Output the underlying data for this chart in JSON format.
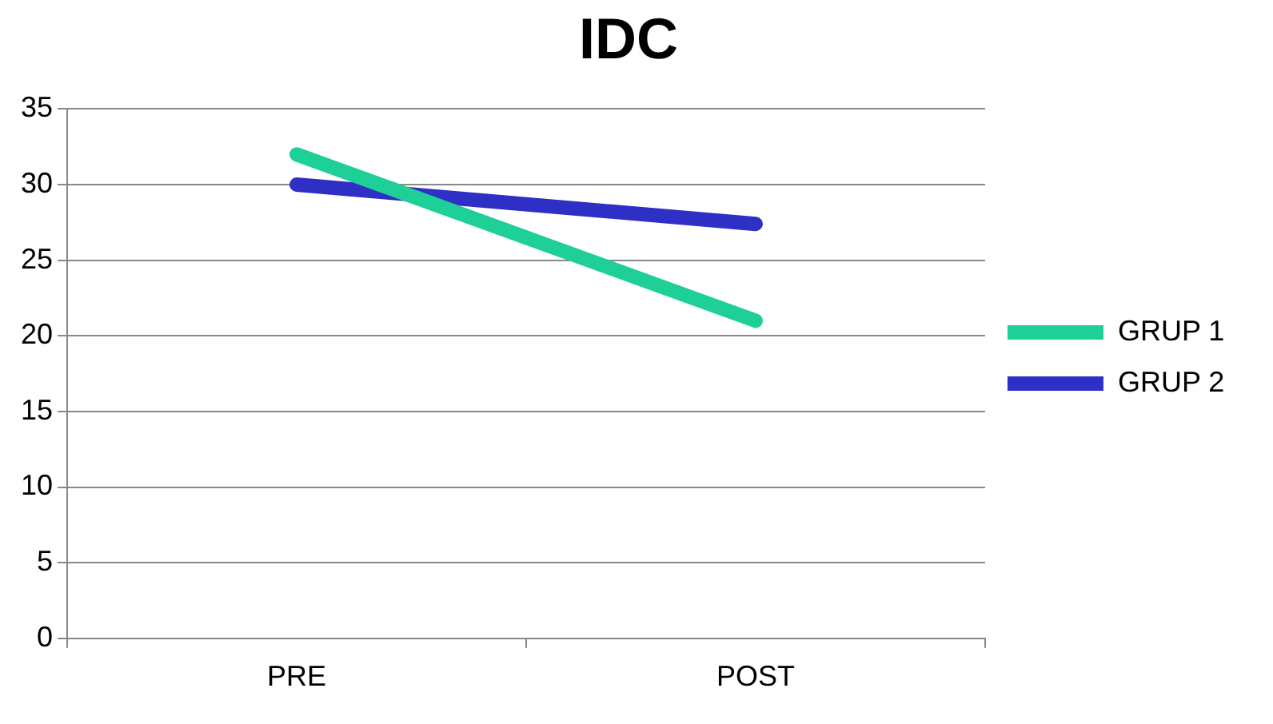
{
  "chart_data": {
    "type": "line",
    "title": "IDC",
    "categories": [
      "PRE",
      "POST"
    ],
    "series": [
      {
        "name": "GRUP 1",
        "color": "#1fcf98",
        "values": [
          32,
          21
        ]
      },
      {
        "name": "GRUP 2",
        "color": "#2e2fc4",
        "values": [
          30,
          27.4
        ]
      }
    ],
    "ylim": [
      0,
      35
    ],
    "yticks": [
      0,
      5,
      10,
      15,
      20,
      25,
      30,
      35
    ],
    "grid": "y",
    "legend": "right",
    "marker": "none",
    "line_style": "solid"
  }
}
